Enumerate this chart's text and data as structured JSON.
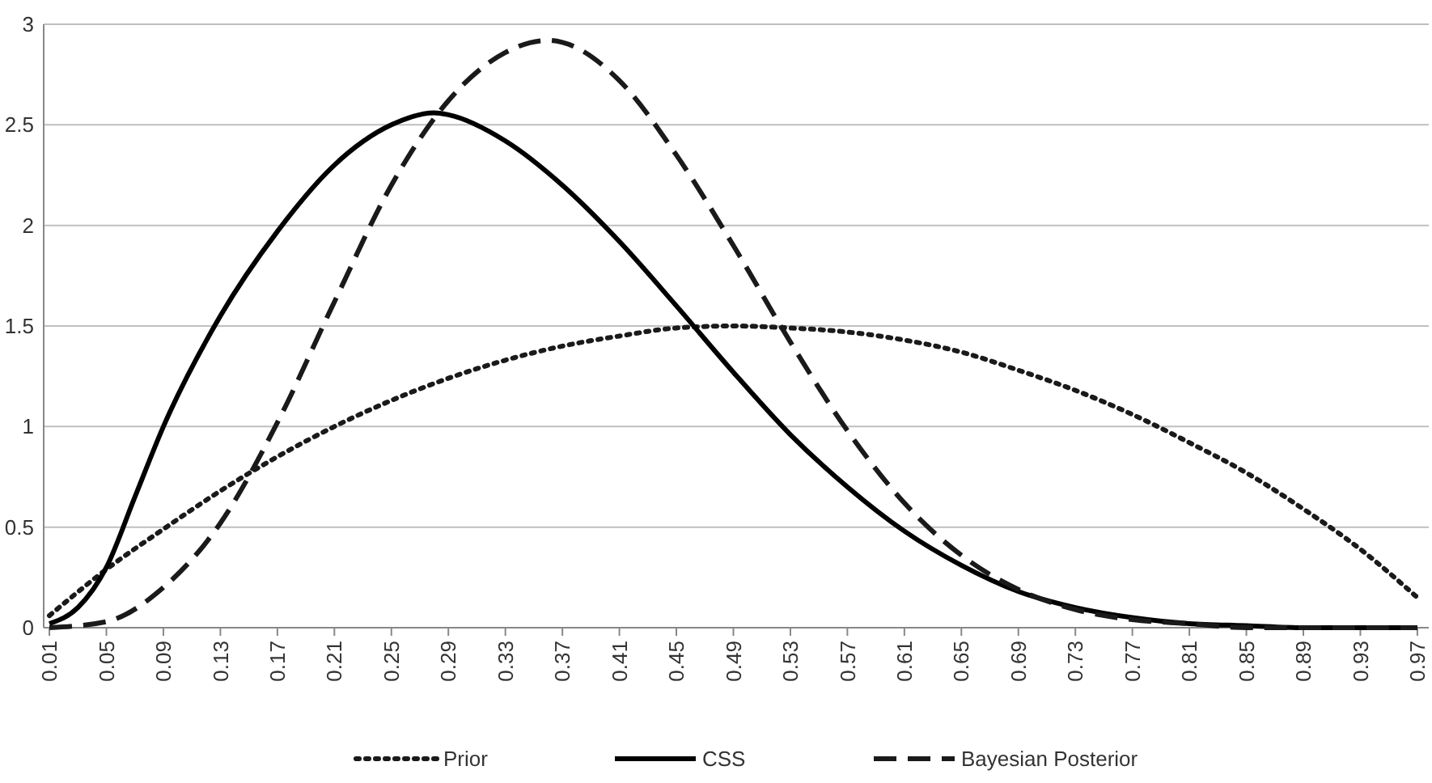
{
  "chart_data": {
    "type": "line",
    "xlim": [
      0.006,
      0.978
    ],
    "xticks": [
      0.01,
      0.05,
      0.09,
      0.13,
      0.17,
      0.21,
      0.25,
      0.29,
      0.33,
      0.37,
      0.41,
      0.45,
      0.49,
      0.53,
      0.57,
      0.61,
      0.65,
      0.69,
      0.73,
      0.77,
      0.81,
      0.85,
      0.89,
      0.93,
      0.97
    ],
    "ylim": [
      0,
      3
    ],
    "yticks": [
      0,
      0.5,
      1,
      1.5,
      2,
      2.5,
      3
    ],
    "grid": "y",
    "legend": "bottom",
    "series": [
      {
        "name": "Prior",
        "color": "#1a1a1a",
        "line_style": "dotted",
        "x": [
          0.01,
          0.05,
          0.09,
          0.13,
          0.17,
          0.21,
          0.25,
          0.29,
          0.33,
          0.37,
          0.41,
          0.45,
          0.49,
          0.53,
          0.57,
          0.61,
          0.65,
          0.69,
          0.73,
          0.77,
          0.81,
          0.85,
          0.89,
          0.93,
          0.97
        ],
        "values": [
          0.06,
          0.29,
          0.49,
          0.68,
          0.85,
          1.0,
          1.13,
          1.24,
          1.33,
          1.4,
          1.45,
          1.49,
          1.5,
          1.49,
          1.47,
          1.43,
          1.37,
          1.28,
          1.18,
          1.06,
          0.92,
          0.77,
          0.59,
          0.39,
          0.15
        ]
      },
      {
        "name": "CSS",
        "color": "#000000",
        "line_style": "solid",
        "x": [
          0.01,
          0.03,
          0.05,
          0.07,
          0.09,
          0.13,
          0.17,
          0.21,
          0.25,
          0.28,
          0.29,
          0.33,
          0.37,
          0.41,
          0.45,
          0.49,
          0.53,
          0.57,
          0.61,
          0.65,
          0.69,
          0.73,
          0.77,
          0.81,
          0.85,
          0.89,
          0.93,
          0.97
        ],
        "values": [
          0.02,
          0.1,
          0.3,
          0.65,
          1.0,
          1.55,
          1.97,
          2.3,
          2.5,
          2.56,
          2.55,
          2.42,
          2.2,
          1.92,
          1.6,
          1.27,
          0.96,
          0.7,
          0.48,
          0.31,
          0.18,
          0.1,
          0.05,
          0.02,
          0.01,
          0,
          0,
          0
        ]
      },
      {
        "name": "Bayesian Posterior",
        "color": "#1a1a1a",
        "line_style": "dashed",
        "x": [
          0.01,
          0.05,
          0.09,
          0.13,
          0.17,
          0.21,
          0.25,
          0.29,
          0.33,
          0.36,
          0.37,
          0.41,
          0.45,
          0.49,
          0.53,
          0.57,
          0.61,
          0.65,
          0.69,
          0.73,
          0.77,
          0.81,
          0.85,
          0.89,
          0.93,
          0.97
        ],
        "values": [
          0,
          0.03,
          0.2,
          0.52,
          1.02,
          1.62,
          2.2,
          2.62,
          2.86,
          2.92,
          2.91,
          2.72,
          2.35,
          1.9,
          1.42,
          0.98,
          0.62,
          0.36,
          0.19,
          0.09,
          0.04,
          0.02,
          0,
          0,
          0,
          0
        ]
      }
    ]
  }
}
